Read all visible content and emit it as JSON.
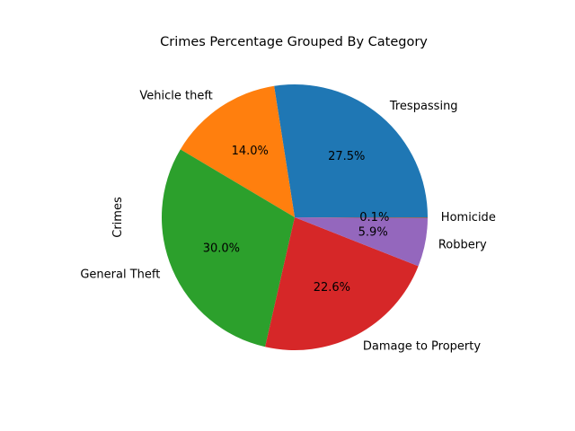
{
  "chart_data": {
    "type": "pie",
    "title": "Crimes Percentage Grouped By Category",
    "ylabel": "Crimes",
    "start_angle_deg": 0,
    "direction": "counterclockwise",
    "slices": [
      {
        "label": "Trespassing",
        "value": 27.5,
        "pct_label": "27.5%",
        "color": "#1f77b4"
      },
      {
        "label": "Vehicle theft",
        "value": 14.0,
        "pct_label": "14.0%",
        "color": "#ff7f0e"
      },
      {
        "label": "General Theft",
        "value": 30.0,
        "pct_label": "30.0%",
        "color": "#2ca02c"
      },
      {
        "label": "Damage to Property",
        "value": 22.6,
        "pct_label": "22.6%",
        "color": "#d62728"
      },
      {
        "label": "Robbery",
        "value": 5.9,
        "pct_label": "5.9%",
        "color": "#9467bd"
      },
      {
        "label": "Homicide",
        "value": 0.1,
        "pct_label": "0.1%",
        "color": "#8c564b"
      }
    ]
  }
}
